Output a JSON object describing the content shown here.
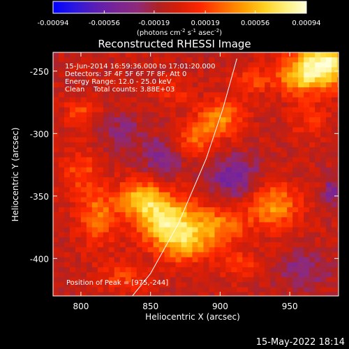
{
  "colorbar": {
    "ticks": [
      "-0.00094",
      "-0.00056",
      "-0.00019",
      "0.00019",
      "0.00056",
      "0.00094"
    ],
    "tick_values": [
      -0.00094,
      -0.00056,
      -0.00019,
      0.00019,
      0.00056,
      0.00094
    ],
    "range": [
      -0.00094,
      0.00094
    ],
    "unit_main": "(photons cm",
    "unit_sup1": "-2",
    "unit_mid": " s",
    "unit_sup2": "-1",
    "unit_end": " asec",
    "unit_sup3": "-2",
    "unit_close": ")"
  },
  "title": "Reconstructed RHESSI Image",
  "info_lines": [
    "15-Jun-2014 16:59:36.000 to 17:01:20.000",
    "Detectors: 3F 4F 5F 6F 7F 8F, Att 0",
    "Energy Range: 12.0 - 25.0 keV",
    "Clean    Total counts: 3.88E+03"
  ],
  "peak_label": "Position of Peak = [975,-244]",
  "footer_date": "15-May-2022 18:14",
  "colors": {
    "background": "#000000",
    "foreground": "#ffffff",
    "colormap": [
      "#0000ff",
      "#2a18e0",
      "#5a1eb4",
      "#7a2496",
      "#8e2a7a",
      "#b02222",
      "#d81e06",
      "#ff2800",
      "#ff6400",
      "#ff9b00",
      "#ffd020",
      "#fff07a",
      "#ffffd8"
    ]
  },
  "chart_data": {
    "type": "heatmap",
    "title": "Reconstructed RHESSI Image",
    "xlabel": "Heliocentric X (arcsec)",
    "ylabel": "Heliocentric Y (arcsec)",
    "xlim": [
      780,
      985
    ],
    "ylim": [
      -430,
      -235
    ],
    "xticks": [
      800,
      850,
      900,
      950
    ],
    "yticks": [
      -250,
      -300,
      -350,
      -400
    ],
    "xtick_labels": [
      "800",
      "850",
      "900",
      "950"
    ],
    "ytick_labels": [
      "-250",
      "-300",
      "-350",
      "-400"
    ],
    "value_range": [
      -0.00094,
      0.00094
    ],
    "peak_position": [
      975,
      -244
    ],
    "limb_curve_points": [
      [
        837,
        -430
      ],
      [
        850,
        -412
      ],
      [
        870,
        -372
      ],
      [
        890,
        -320
      ],
      [
        902,
        -280
      ],
      [
        912,
        -240
      ]
    ],
    "emission_features": [
      {
        "x": 975,
        "y": -244,
        "amp": 0.00094,
        "sx": 14,
        "sy": 13
      },
      {
        "x": 955,
        "y": -255,
        "amp": 0.0005,
        "sx": 12,
        "sy": 10
      },
      {
        "x": 862,
        "y": -370,
        "amp": 0.00082,
        "sx": 15,
        "sy": 14
      },
      {
        "x": 843,
        "y": -352,
        "amp": 0.0006,
        "sx": 11,
        "sy": 10
      },
      {
        "x": 875,
        "y": -390,
        "amp": 0.00045,
        "sx": 12,
        "sy": 10
      },
      {
        "x": 898,
        "y": -375,
        "amp": 0.00048,
        "sx": 14,
        "sy": 11
      },
      {
        "x": 938,
        "y": -358,
        "amp": 0.00055,
        "sx": 13,
        "sy": 12
      },
      {
        "x": 900,
        "y": -288,
        "amp": 0.00052,
        "sx": 11,
        "sy": 10
      },
      {
        "x": 882,
        "y": -304,
        "amp": 0.0004,
        "sx": 9,
        "sy": 9
      },
      {
        "x": 812,
        "y": -365,
        "amp": 0.00042,
        "sx": 10,
        "sy": 16
      },
      {
        "x": 800,
        "y": -330,
        "amp": 0.0003,
        "sx": 9,
        "sy": 12
      },
      {
        "x": 800,
        "y": -283,
        "amp": 0.00028,
        "sx": 8,
        "sy": 8
      },
      {
        "x": 922,
        "y": -258,
        "amp": 0.00028,
        "sx": 9,
        "sy": 8
      },
      {
        "x": 830,
        "y": -415,
        "amp": 0.00026,
        "sx": 12,
        "sy": 8
      },
      {
        "x": 915,
        "y": -405,
        "amp": 0.00025,
        "sx": 10,
        "sy": 8
      },
      {
        "x": 965,
        "y": -290,
        "amp": 0.00022,
        "sx": 10,
        "sy": 10
      },
      {
        "x": 868,
        "y": -268,
        "amp": 0.0002,
        "sx": 8,
        "sy": 8
      },
      {
        "x": 858,
        "y": -320,
        "amp": -0.0003,
        "sx": 10,
        "sy": 12
      },
      {
        "x": 910,
        "y": -335,
        "amp": -0.0004,
        "sx": 13,
        "sy": 12
      },
      {
        "x": 830,
        "y": -300,
        "amp": -0.00025,
        "sx": 10,
        "sy": 10
      },
      {
        "x": 960,
        "y": -410,
        "amp": -0.00025,
        "sx": 14,
        "sy": 10
      },
      {
        "x": 980,
        "y": -345,
        "amp": -0.00035,
        "sx": 4,
        "sy": 8
      }
    ]
  }
}
